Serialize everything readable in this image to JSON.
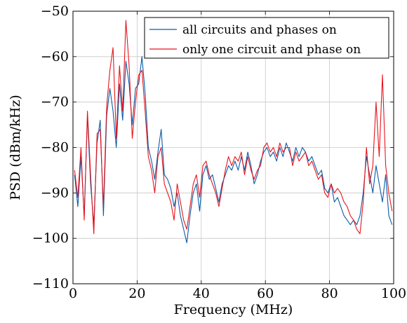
{
  "chart_data": {
    "type": "line",
    "title": "",
    "xlabel": "Frequency (MHz)",
    "ylabel": "PSD (dBm/kHz)",
    "xlim": [
      0,
      100
    ],
    "ylim": [
      -110,
      -50
    ],
    "x_ticks": [
      0,
      20,
      40,
      60,
      80,
      100
    ],
    "x_tick_labels": [
      "0",
      "20",
      "40",
      "60",
      "80",
      "100"
    ],
    "y_ticks": [
      -110,
      -100,
      -90,
      -80,
      -70,
      -60,
      -50
    ],
    "y_tick_labels": [
      "−110",
      "−100",
      "−90",
      "−80",
      "−70",
      "−60",
      "−50"
    ],
    "grid": true,
    "legend_position": "top-right",
    "series": [
      {
        "name": "all circuits and phases on",
        "color": "#0a5ca8",
        "x": [
          0.5,
          1.5,
          2.5,
          3.5,
          4.5,
          5.5,
          6.5,
          7.5,
          8.5,
          9.5,
          10.5,
          11.5,
          12.5,
          13.5,
          14.5,
          15.5,
          16.5,
          17.5,
          18.5,
          19.5,
          20.5,
          21.5,
          22.5,
          23.5,
          24.5,
          25.5,
          26.5,
          27.5,
          28.5,
          29.5,
          30.5,
          31.5,
          32.5,
          33.5,
          34.5,
          35.5,
          36.5,
          37.5,
          38.5,
          39.5,
          40.5,
          41.5,
          42.5,
          43.5,
          44.5,
          45.5,
          46.5,
          47.5,
          48.5,
          49.5,
          50.5,
          51.5,
          52.5,
          53.5,
          54.5,
          55.5,
          56.5,
          57.5,
          58.5,
          59.5,
          60.5,
          61.5,
          62.5,
          63.5,
          64.5,
          65.5,
          66.5,
          67.5,
          68.5,
          69.5,
          70.5,
          71.5,
          72.5,
          73.5,
          74.5,
          75.5,
          76.5,
          77.5,
          78.5,
          79.5,
          80.5,
          81.5,
          82.5,
          83.5,
          84.5,
          85.5,
          86.5,
          87.5,
          88.5,
          89.5,
          90.5,
          91.5,
          92.5,
          93.5,
          94.5,
          95.5,
          96.5,
          97.5,
          98.5,
          99.5
        ],
        "y": [
          -86,
          -93,
          -82,
          -95,
          -73,
          -88,
          -97,
          -79,
          -74,
          -95,
          -73,
          -67,
          -72,
          -80,
          -66,
          -74,
          -61,
          -66,
          -75,
          -67,
          -66,
          -60,
          -68,
          -80,
          -83,
          -87,
          -81,
          -76,
          -86,
          -87,
          -89,
          -93,
          -90,
          -95,
          -98,
          -101,
          -95,
          -90,
          -88,
          -94,
          -86,
          -84,
          -87,
          -86,
          -89,
          -92,
          -88,
          -86,
          -84,
          -85,
          -83,
          -85,
          -82,
          -85,
          -81,
          -84,
          -88,
          -86,
          -83,
          -81,
          -80,
          -82,
          -81,
          -83,
          -80,
          -82,
          -79,
          -81,
          -83,
          -80,
          -82,
          -80,
          -81,
          -83,
          -82,
          -84,
          -86,
          -85,
          -89,
          -90,
          -88,
          -92,
          -91,
          -93,
          -95,
          -96,
          -97,
          -96,
          -97,
          -95,
          -90,
          -82,
          -86,
          -90,
          -84,
          -88,
          -92,
          -86,
          -95,
          -97
        ]
      },
      {
        "name": "only one circuit and phase on",
        "color": "#e8141c",
        "x": [
          0.5,
          1.5,
          2.5,
          3.5,
          4.5,
          5.5,
          6.5,
          7.5,
          8.5,
          9.5,
          10.5,
          11.5,
          12.5,
          13.5,
          14.5,
          15.5,
          16.5,
          17.5,
          18.5,
          19.5,
          20.5,
          21.5,
          22.5,
          23.5,
          24.5,
          25.5,
          26.5,
          27.5,
          28.5,
          29.5,
          30.5,
          31.5,
          32.5,
          33.5,
          34.5,
          35.5,
          36.5,
          37.5,
          38.5,
          39.5,
          40.5,
          41.5,
          42.5,
          43.5,
          44.5,
          45.5,
          46.5,
          47.5,
          48.5,
          49.5,
          50.5,
          51.5,
          52.5,
          53.5,
          54.5,
          55.5,
          56.5,
          57.5,
          58.5,
          59.5,
          60.5,
          61.5,
          62.5,
          63.5,
          64.5,
          65.5,
          66.5,
          67.5,
          68.5,
          69.5,
          70.5,
          71.5,
          72.5,
          73.5,
          74.5,
          75.5,
          76.5,
          77.5,
          78.5,
          79.5,
          80.5,
          81.5,
          82.5,
          83.5,
          84.5,
          85.5,
          86.5,
          87.5,
          88.5,
          89.5,
          90.5,
          91.5,
          92.5,
          93.5,
          94.5,
          95.5,
          96.5,
          97.5,
          98.5,
          99.5
        ],
        "y": [
          -85,
          -91,
          -80,
          -96,
          -72,
          -86,
          -99,
          -77,
          -76,
          -93,
          -71,
          -63,
          -58,
          -78,
          -62,
          -72,
          -52,
          -62,
          -78,
          -70,
          -64,
          -63,
          -72,
          -82,
          -85,
          -90,
          -82,
          -80,
          -88,
          -90,
          -92,
          -96,
          -88,
          -92,
          -96,
          -98,
          -93,
          -88,
          -86,
          -91,
          -84,
          -83,
          -86,
          -88,
          -90,
          -93,
          -89,
          -85,
          -82,
          -84,
          -82,
          -83,
          -81,
          -86,
          -82,
          -85,
          -87,
          -85,
          -84,
          -80,
          -79,
          -81,
          -80,
          -82,
          -79,
          -81,
          -80,
          -80,
          -84,
          -81,
          -83,
          -82,
          -81,
          -84,
          -83,
          -85,
          -87,
          -86,
          -90,
          -91,
          -88,
          -90,
          -89,
          -90,
          -92,
          -93,
          -95,
          -96,
          -98,
          -99,
          -92,
          -80,
          -88,
          -84,
          -70,
          -82,
          -64,
          -84,
          -90,
          -94
        ]
      }
    ]
  }
}
